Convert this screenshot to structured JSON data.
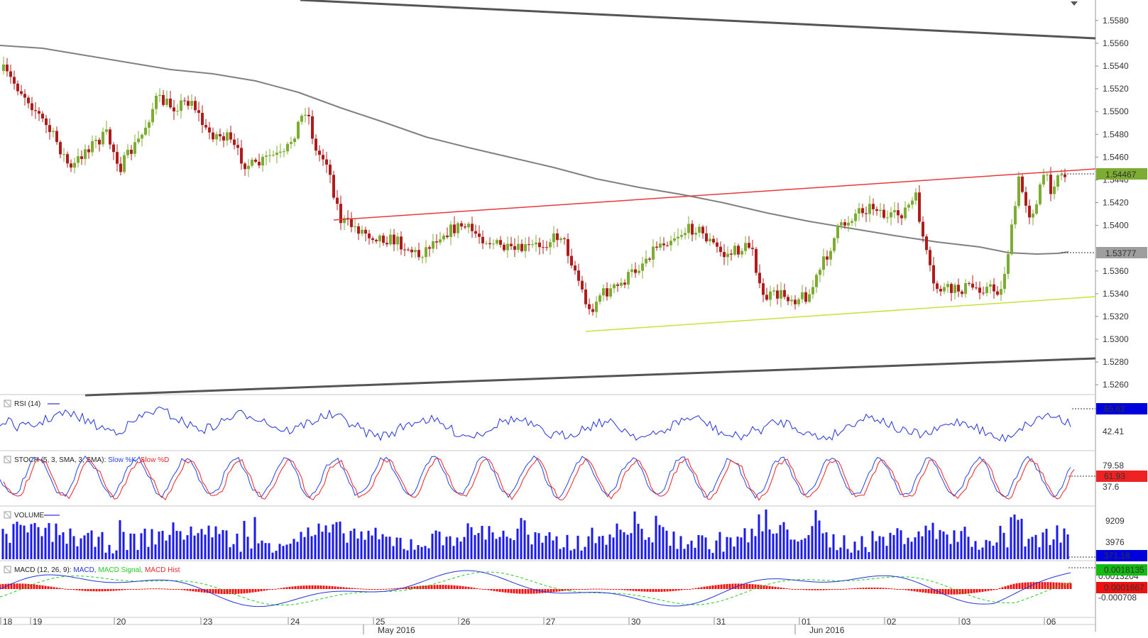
{
  "chart_data": {
    "type": "candlestick",
    "main": {
      "price_axis_labels": [
        "1.5580",
        "1.5560",
        "1.5540",
        "1.5520",
        "1.5500",
        "1.5480",
        "1.5460",
        "1.5440",
        "1.5420",
        "1.5400",
        "1.5360",
        "1.5340",
        "1.5320",
        "1.5300",
        "1.5280",
        "1.5260"
      ],
      "ylim": [
        1.5252,
        1.5598
      ],
      "last_price": "1.54467",
      "last_price_color": "#7cac32",
      "ma_value": "1.53777",
      "ma_color": "#808080",
      "up_color": "#7cac32",
      "down_color": "#b01c1c",
      "trendline_colors": {
        "resistance": "#e8383c",
        "support": "#c8e23c",
        "channel": "#555555"
      }
    },
    "panels": [
      {
        "name": "rsi",
        "label": "RSI (14)",
        "axis_labels": [
          "42.41"
        ],
        "value": "65.62",
        "value_color": "#0000dd"
      },
      {
        "name": "stoch",
        "label": "STOCH (5, 3, SMA, 3, SMA):",
        "series": [
          "Slow %K,",
          "Slow %D"
        ],
        "series_colors": [
          "#2244ee",
          "#ee2222"
        ],
        "axis_labels": [
          "79.58",
          "37.6"
        ],
        "value": "61.93",
        "value_color": "#ee2222"
      },
      {
        "name": "volume",
        "label": "VOLUME",
        "axis_labels": [
          "9209",
          "3976"
        ],
        "value": "371.18",
        "value_color": "#0000dd"
      },
      {
        "name": "macd",
        "label": "MACD (12, 26, 9):",
        "series": [
          "MACD,",
          "MACD Signal,",
          "MACD Hist"
        ],
        "series_colors": [
          "#2233dd",
          "#22cc22",
          "#ee2222"
        ],
        "axis_labels": [
          "0.0013204",
          "-0.000708"
        ],
        "values": [
          "0.0018135",
          "0.0001667"
        ],
        "value_colors": [
          "#11bb11",
          "#ee1111"
        ]
      }
    ],
    "date_axis": {
      "days": [
        "18",
        "19",
        "20",
        "23",
        "24",
        "25",
        "26",
        "27",
        "30",
        "31",
        "01",
        "02",
        "03",
        "06"
      ],
      "months": [
        "May 2016",
        "Jun 2016"
      ]
    }
  }
}
